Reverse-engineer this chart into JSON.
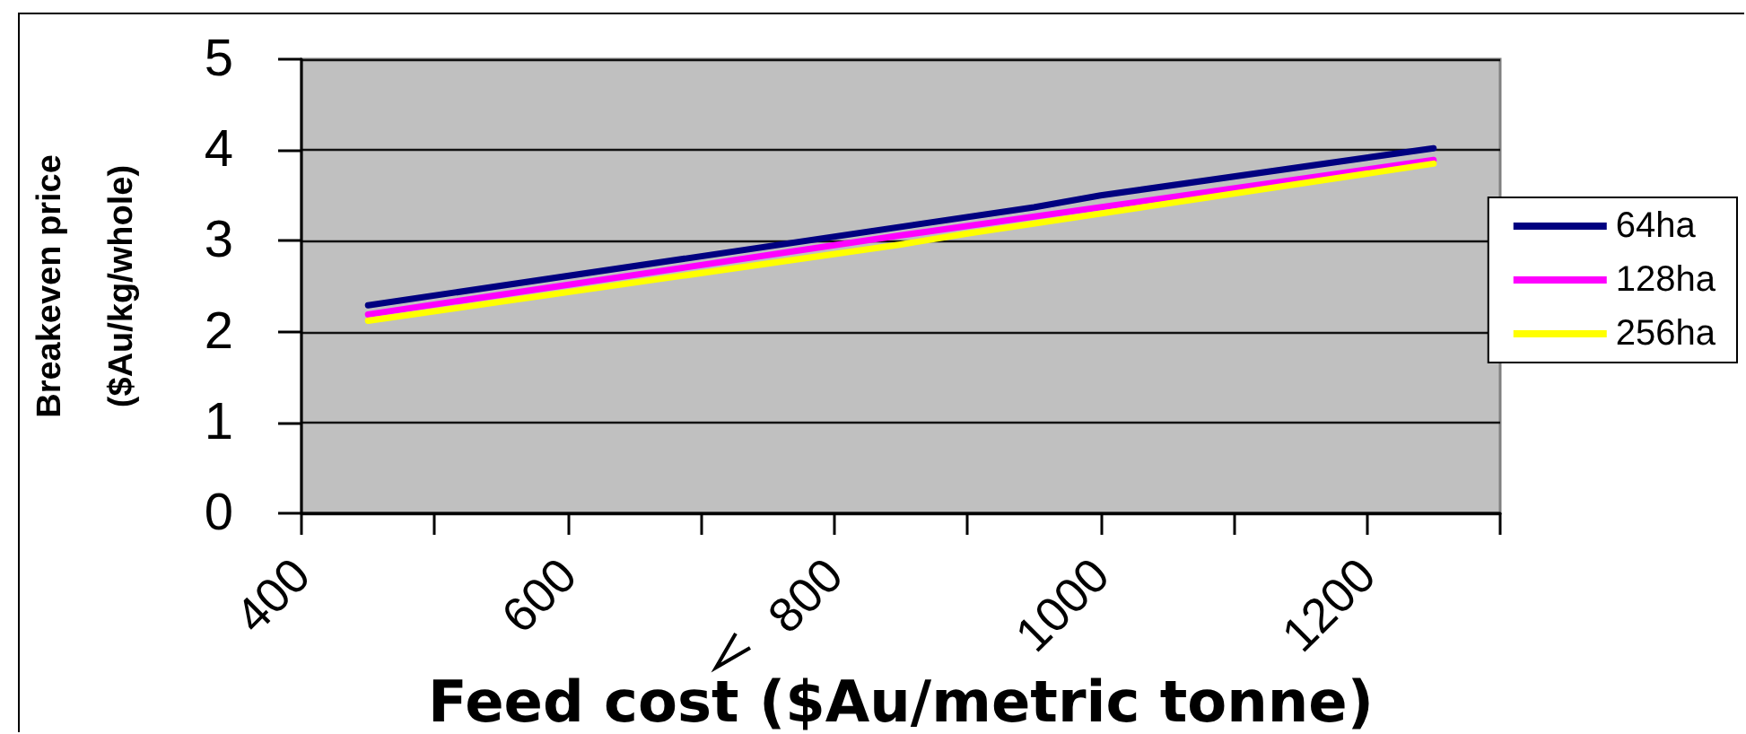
{
  "chart_data": {
    "type": "line",
    "xlabel": "Feed cost ($Au/metric tonne)",
    "ylabel": "Breakeven price ($Au/kg/whole)",
    "series": [
      {
        "name": "64ha",
        "color": "#000080",
        "x": [
          450,
          950,
          1000,
          1250
        ],
        "values": [
          2.29,
          3.37,
          3.5,
          4.02
        ]
      },
      {
        "name": "128ha",
        "color": "#ff00ff",
        "x": [
          450,
          850,
          1250
        ],
        "values": [
          2.19,
          3.06,
          3.89
        ]
      },
      {
        "name": "256ha",
        "color": "#ffff00",
        "x": [
          450,
          850,
          900,
          1250
        ],
        "values": [
          2.12,
          2.96,
          3.08,
          3.85
        ]
      }
    ],
    "xlim": [
      400,
      1300
    ],
    "xticks": [
      400,
      {
        "value": 500,
        "label": null
      },
      600,
      {
        "value": 700,
        "label": null
      },
      800,
      {
        "value": 900,
        "label": null
      },
      1000,
      {
        "value": 1100,
        "label": null
      },
      1200,
      {
        "value": 1300,
        "label": null
      }
    ],
    "ylim": [
      0,
      5
    ],
    "yticks": [
      0,
      1,
      2,
      3,
      4,
      5
    ],
    "grid": "y",
    "legend": "right",
    "marker": "none",
    "line_style": "solid"
  }
}
